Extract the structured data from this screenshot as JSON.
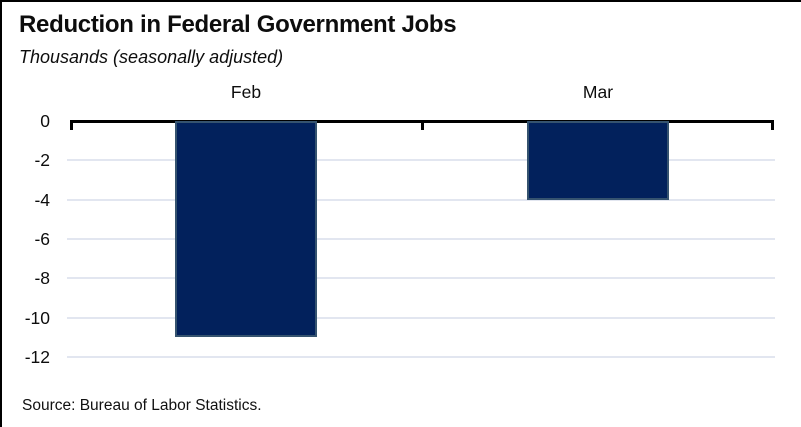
{
  "header": {
    "title": "Reduction in Federal Government Jobs",
    "subtitle": "Thousands (seasonally adjusted)"
  },
  "footer": {
    "source": "Source: Bureau of Labor Statistics."
  },
  "chart_data": {
    "type": "bar",
    "title": "Reduction in Federal Government Jobs",
    "subtitle": "Thousands (seasonally adjusted)",
    "units": "Thousands (seasonally adjusted)",
    "categories": [
      "Feb",
      "Mar"
    ],
    "values": [
      -11,
      -4
    ],
    "xlabel": "",
    "ylabel": "",
    "ylim": [
      -12,
      0
    ],
    "yticks": [
      0,
      -2,
      -4,
      -6,
      -8,
      -10,
      -12
    ],
    "grid": true,
    "legend": false,
    "category_labels_position": "top",
    "colors": {
      "bar_fill": "#02215c",
      "bar_border": "#35536f",
      "gridline": "#e2e6f0",
      "axis": "#000000",
      "text": "#0d0d0d"
    },
    "source": "Source: Bureau of Labor Statistics."
  }
}
